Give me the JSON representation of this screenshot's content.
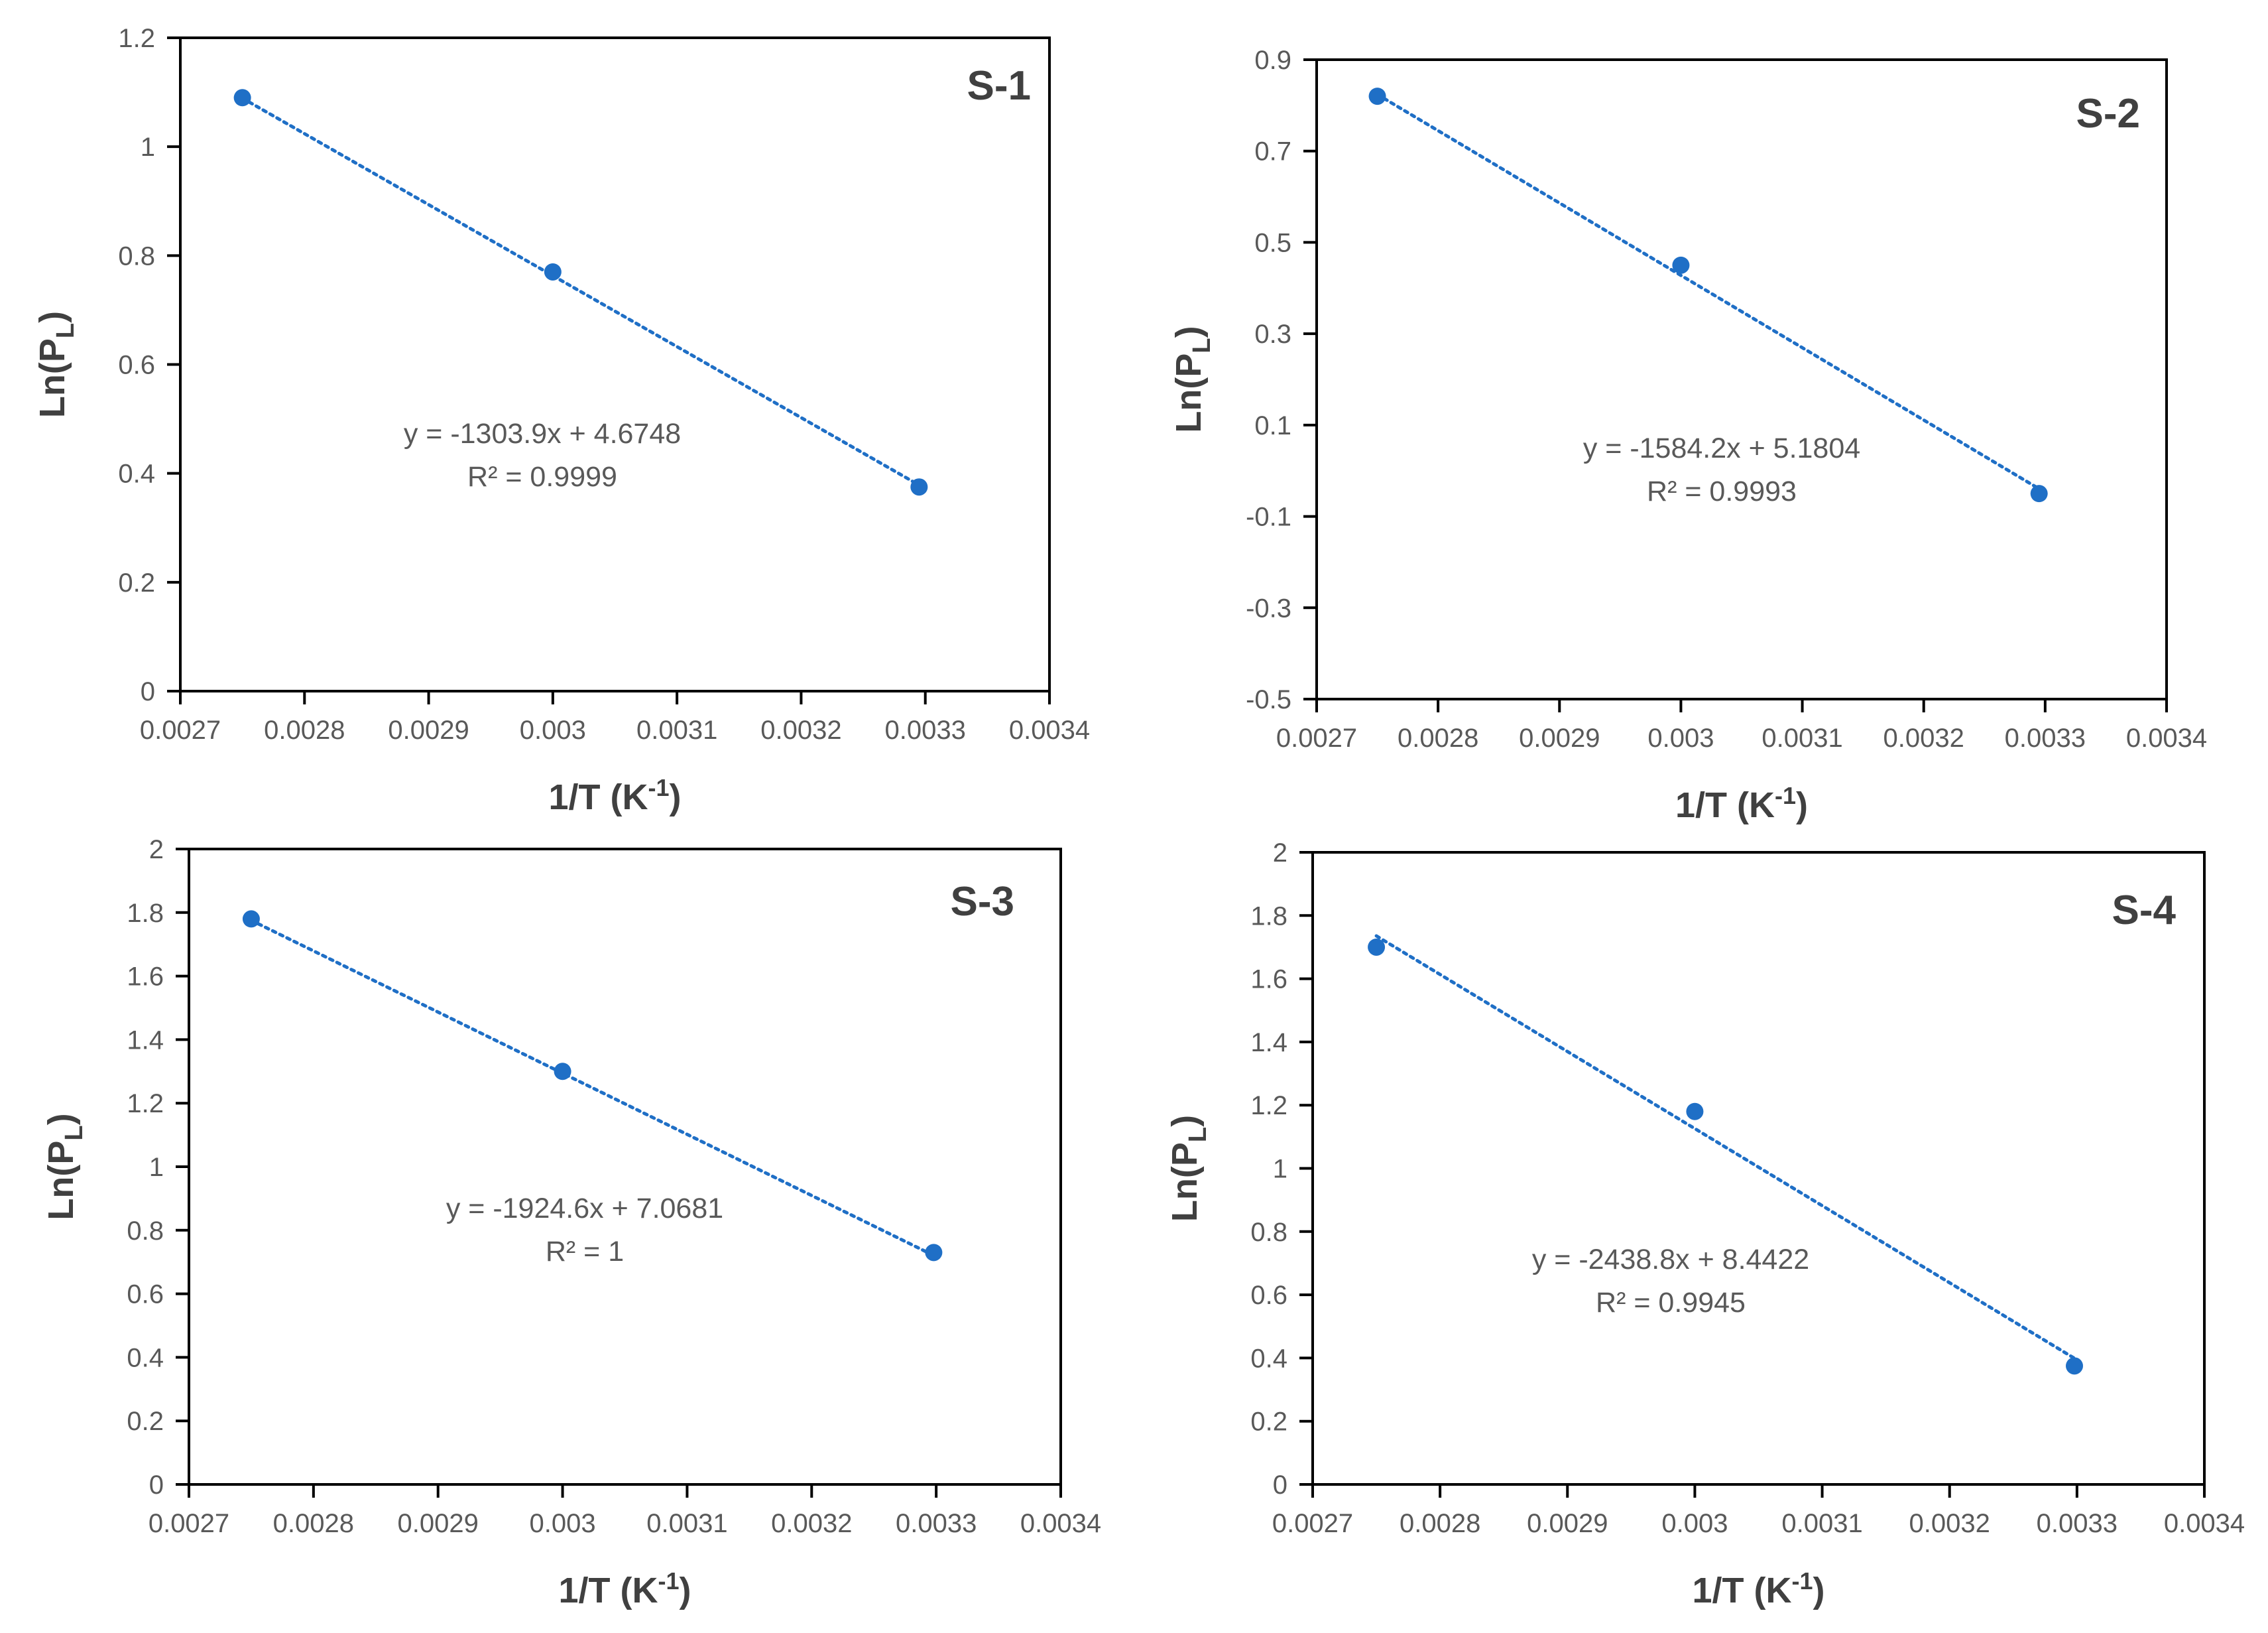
{
  "chart_data": [
    {
      "type": "scatter",
      "label": "S-1",
      "xlabel": "1/T (K-1)",
      "ylabel": "Ln(PL)",
      "xlim": [
        0.0027,
        0.0034
      ],
      "ylim": [
        0,
        1.2
      ],
      "xticks": [
        0.0027,
        0.0028,
        0.0029,
        0.003,
        0.0031,
        0.0032,
        0.0033,
        0.0034
      ],
      "xtick_labels": [
        "0.0027",
        "0.0028",
        "0.0029",
        "0.003",
        "0.0031",
        "0.0032",
        "0.0033",
        "0.0034"
      ],
      "yticks": [
        0,
        0.2,
        0.4,
        0.6,
        0.8,
        1,
        1.2
      ],
      "ytick_labels": [
        "0",
        "0.2",
        "0.4",
        "0.6",
        "0.8",
        "1",
        "1.2"
      ],
      "x": [
        0.00275,
        0.003,
        0.003295
      ],
      "y": [
        1.09,
        0.77,
        0.375
      ],
      "trendline": {
        "slope": -1303.9,
        "intercept": 4.6748
      },
      "equation": "y = -1303.9x + 4.6748",
      "r2_label": "R² = 0.9999",
      "color": "#1f6fc6"
    },
    {
      "type": "scatter",
      "label": "S-2",
      "xlabel": "1/T (K-1)",
      "ylabel": "Ln(PL)",
      "xlim": [
        0.0027,
        0.0034
      ],
      "ylim": [
        -0.5,
        0.9
      ],
      "xticks": [
        0.0027,
        0.0028,
        0.0029,
        0.003,
        0.0031,
        0.0032,
        0.0033,
        0.0034
      ],
      "xtick_labels": [
        "0.0027",
        "0.0028",
        "0.0029",
        "0.003",
        "0.0031",
        "0.0032",
        "0.0033",
        "0.0034"
      ],
      "yticks": [
        -0.5,
        -0.3,
        -0.1,
        0.1,
        0.3,
        0.5,
        0.7,
        0.9
      ],
      "ytick_labels": [
        "-0.5",
        "-0.3",
        "-0.1",
        "0.1",
        "0.3",
        "0.5",
        "0.7",
        "0.9"
      ],
      "x": [
        0.00275,
        0.003,
        0.003295
      ],
      "y": [
        0.82,
        0.45,
        -0.05
      ],
      "trendline": {
        "slope": -1584.2,
        "intercept": 5.1804
      },
      "equation": "y = -1584.2x + 5.1804",
      "r2_label": "R² = 0.9993",
      "color": "#1f6fc6"
    },
    {
      "type": "scatter",
      "label": "S-3",
      "xlabel": "1/T (K-1)",
      "ylabel": "Ln(PL)",
      "xlim": [
        0.0027,
        0.0034
      ],
      "ylim": [
        0,
        2
      ],
      "xticks": [
        0.0027,
        0.0028,
        0.0029,
        0.003,
        0.0031,
        0.0032,
        0.0033,
        0.0034
      ],
      "xtick_labels": [
        "0.0027",
        "0.0028",
        "0.0029",
        "0.003",
        "0.0031",
        "0.0032",
        "0.0033",
        "0.0034"
      ],
      "yticks": [
        0,
        0.2,
        0.4,
        0.6,
        0.8,
        1,
        1.2,
        1.4,
        1.6,
        1.8,
        2
      ],
      "ytick_labels": [
        "0",
        "0.2",
        "0.4",
        "0.6",
        "0.8",
        "1",
        "1.2",
        "1.4",
        "1.6",
        "1.8",
        "2"
      ],
      "x": [
        0.00275,
        0.003,
        0.003298
      ],
      "y": [
        1.78,
        1.3,
        0.73
      ],
      "trendline": {
        "slope": -1924.6,
        "intercept": 7.0681
      },
      "equation": "y = -1924.6x + 7.0681",
      "r2_label": "R² = 1",
      "color": "#1f6fc6"
    },
    {
      "type": "scatter",
      "label": "S-4",
      "xlabel": "1/T (K-1)",
      "ylabel": "Ln(PL)",
      "xlim": [
        0.0027,
        0.0034
      ],
      "ylim": [
        0,
        2
      ],
      "xticks": [
        0.0027,
        0.0028,
        0.0029,
        0.003,
        0.0031,
        0.0032,
        0.0033,
        0.0034
      ],
      "xtick_labels": [
        "0.0027",
        "0.0028",
        "0.0029",
        "0.003",
        "0.0031",
        "0.0032",
        "0.0033",
        "0.0034"
      ],
      "yticks": [
        0,
        0.2,
        0.4,
        0.6,
        0.8,
        1,
        1.2,
        1.4,
        1.6,
        1.8,
        2
      ],
      "ytick_labels": [
        "0",
        "0.2",
        "0.4",
        "0.6",
        "0.8",
        "1",
        "1.2",
        "1.4",
        "1.6",
        "1.8",
        "2"
      ],
      "x": [
        0.00275,
        0.003,
        0.003298
      ],
      "y": [
        1.7,
        1.18,
        0.375
      ],
      "trendline": {
        "slope": -2438.8,
        "intercept": 8.4422
      },
      "equation": "y = -2438.8x + 8.4422",
      "r2_label": "R² = 0.9945",
      "color": "#1f6fc6"
    }
  ]
}
